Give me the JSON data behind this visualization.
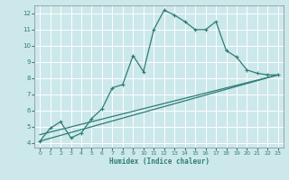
{
  "xlabel": "Humidex (Indice chaleur)",
  "bg_color": "#cce8ea",
  "grid_color": "#ffffff",
  "line_color": "#2e7d73",
  "xlim": [
    -0.5,
    23.5
  ],
  "ylim": [
    3.7,
    12.5
  ],
  "xticks": [
    0,
    1,
    2,
    3,
    4,
    5,
    6,
    7,
    8,
    9,
    10,
    11,
    12,
    13,
    14,
    15,
    16,
    17,
    18,
    19,
    20,
    21,
    22,
    23
  ],
  "yticks": [
    4,
    5,
    6,
    7,
    8,
    9,
    10,
    11,
    12
  ],
  "line1_x": [
    0,
    1,
    2,
    3,
    4,
    5,
    6,
    7,
    8,
    9,
    10,
    11,
    12,
    13,
    14,
    15,
    16,
    17,
    18,
    19,
    20,
    21,
    22,
    23
  ],
  "line1_y": [
    4.1,
    4.9,
    5.3,
    4.3,
    4.6,
    5.5,
    6.1,
    7.4,
    7.6,
    9.4,
    8.4,
    11.0,
    12.2,
    11.9,
    11.5,
    11.0,
    11.0,
    11.5,
    9.7,
    9.3,
    8.5,
    8.3,
    8.2,
    8.2
  ],
  "line2_x": [
    0,
    23
  ],
  "line2_y": [
    4.5,
    8.2
  ],
  "line3_x": [
    0,
    23
  ],
  "line3_y": [
    4.1,
    8.2
  ]
}
